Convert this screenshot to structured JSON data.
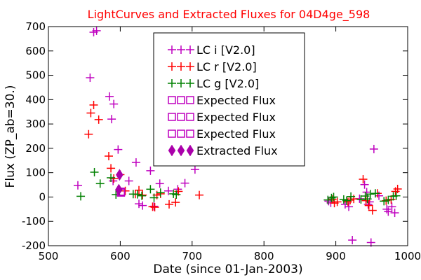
{
  "chart_data": {
    "type": "scatter",
    "title": "LightCurves and Extracted Fluxes for 04D4ge_598",
    "title_color": "#ff0000",
    "xlabel": "Date (since 01-Jan-2003)",
    "ylabel": "Flux (ZP_ab=30.)",
    "xlim": [
      500,
      1000
    ],
    "ylim": [
      -200,
      700
    ],
    "x_ticks": [
      500,
      600,
      700,
      800,
      900,
      1000
    ],
    "y_ticks": [
      -200,
      -100,
      0,
      100,
      200,
      300,
      400,
      500,
      600,
      700
    ],
    "grid": false,
    "legend_position": "upper-center",
    "series": [
      {
        "name": "LC i [V2.0]",
        "marker": "plus",
        "color": "#bf00bf",
        "points": [
          [
            541,
            48
          ],
          [
            558,
            490
          ],
          [
            563,
            677
          ],
          [
            567,
            683
          ],
          [
            585,
            413
          ],
          [
            588,
            320
          ],
          [
            591,
            382
          ],
          [
            597,
            195
          ],
          [
            590,
            66
          ],
          [
            612,
            66
          ],
          [
            622,
            142
          ],
          [
            626,
            -28
          ],
          [
            631,
            -35
          ],
          [
            642,
            108
          ],
          [
            647,
            -38
          ],
          [
            655,
            55
          ],
          [
            667,
            25
          ],
          [
            680,
            32
          ],
          [
            690,
            57
          ],
          [
            704,
            113
          ],
          [
            890,
            -17
          ],
          [
            893,
            -24
          ],
          [
            913,
            -30
          ],
          [
            918,
            -40
          ],
          [
            923,
            -177
          ],
          [
            933,
            -7
          ],
          [
            940,
            51
          ],
          [
            943,
            20
          ],
          [
            945,
            -30
          ],
          [
            947,
            -20
          ],
          [
            949,
            -187
          ],
          [
            953,
            197
          ],
          [
            960,
            5
          ],
          [
            971,
            -50
          ],
          [
            973,
            -60
          ],
          [
            978,
            -40
          ],
          [
            982,
            -65
          ]
        ]
      },
      {
        "name": "LC r [V2.0]",
        "marker": "plus",
        "color": "#ff0000",
        "points": [
          [
            556,
            258
          ],
          [
            559,
            345
          ],
          [
            563,
            378
          ],
          [
            570,
            318
          ],
          [
            584,
            168
          ],
          [
            587,
            118
          ],
          [
            591,
            76
          ],
          [
            600,
            92
          ],
          [
            607,
            25
          ],
          [
            621,
            12
          ],
          [
            626,
            28
          ],
          [
            631,
            8
          ],
          [
            645,
            -40
          ],
          [
            648,
            -42
          ],
          [
            651,
            8
          ],
          [
            656,
            13
          ],
          [
            668,
            -30
          ],
          [
            677,
            -22
          ],
          [
            681,
            23
          ],
          [
            710,
            8
          ],
          [
            895,
            -10
          ],
          [
            898,
            -25
          ],
          [
            902,
            -20
          ],
          [
            917,
            -20
          ],
          [
            920,
            -13
          ],
          [
            925,
            -8
          ],
          [
            938,
            73
          ],
          [
            942,
            -15
          ],
          [
            946,
            -35
          ],
          [
            951,
            -55
          ],
          [
            958,
            15
          ],
          [
            970,
            -15
          ],
          [
            977,
            -10
          ],
          [
            983,
            23
          ],
          [
            986,
            33
          ]
        ]
      },
      {
        "name": "LC g [V2.0]",
        "marker": "plus",
        "color": "#008000",
        "points": [
          [
            545,
            3
          ],
          [
            564,
            102
          ],
          [
            572,
            55
          ],
          [
            587,
            79
          ],
          [
            594,
            10
          ],
          [
            618,
            12
          ],
          [
            624,
            11
          ],
          [
            630,
            5
          ],
          [
            642,
            32
          ],
          [
            647,
            -3
          ],
          [
            656,
            18
          ],
          [
            674,
            13
          ],
          [
            678,
            10
          ],
          [
            889,
            -12
          ],
          [
            894,
            -4
          ],
          [
            897,
            0
          ],
          [
            911,
            -10
          ],
          [
            915,
            -15
          ],
          [
            921,
            2
          ],
          [
            935,
            -10
          ],
          [
            941,
            4
          ],
          [
            944,
            -8
          ],
          [
            948,
            12
          ],
          [
            955,
            15
          ],
          [
            967,
            -17
          ],
          [
            973,
            -12
          ],
          [
            980,
            3
          ],
          [
            984,
            5
          ]
        ]
      }
    ],
    "expected_flux": [
      {
        "name": "Expected Flux",
        "color": "#bf00bf",
        "points": [
          [
            601,
            18
          ],
          [
            601,
            22
          ]
        ]
      },
      {
        "name": "Expected Flux",
        "color": "#bf00bf",
        "points": [
          [
            601,
            20
          ]
        ]
      },
      {
        "name": "Expected Flux",
        "color": "#bf00bf",
        "points": [
          [
            601,
            22
          ]
        ]
      }
    ],
    "extracted_flux": {
      "name": "Extracted Flux",
      "color": "#aa00aa",
      "points": [
        [
          599,
          91
        ],
        [
          598,
          30
        ]
      ]
    }
  }
}
